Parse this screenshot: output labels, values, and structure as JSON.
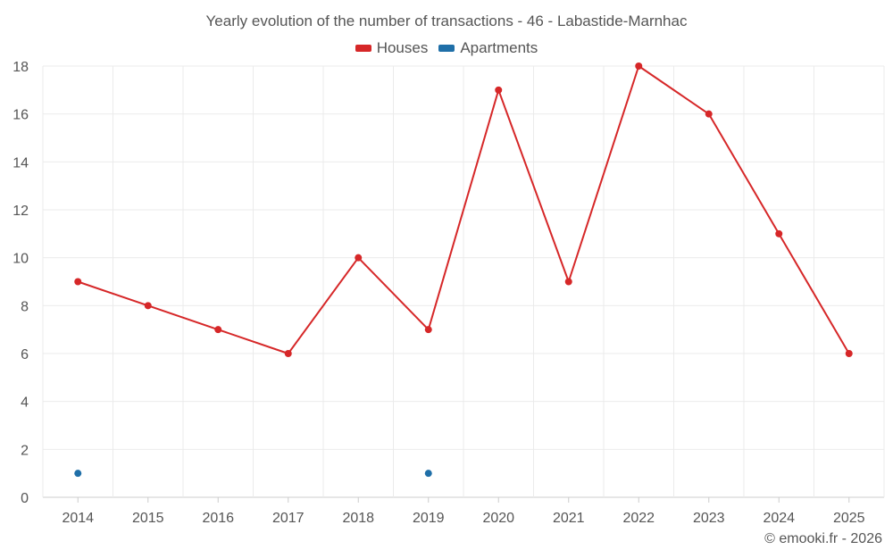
{
  "chart_data": {
    "type": "line",
    "title": "Yearly evolution of the number of transactions - 46 - Labastide-Marnhac",
    "categories": [
      "2014",
      "2015",
      "2016",
      "2017",
      "2018",
      "2019",
      "2020",
      "2021",
      "2022",
      "2023",
      "2024",
      "2025"
    ],
    "series": [
      {
        "name": "Houses",
        "color": "#d62728",
        "values": [
          9,
          8,
          7,
          6,
          10,
          7,
          17,
          9,
          18,
          16,
          11,
          6
        ]
      },
      {
        "name": "Apartments",
        "color": "#1f6fa8",
        "values": [
          1,
          null,
          null,
          null,
          null,
          1,
          null,
          null,
          null,
          null,
          null,
          null
        ]
      }
    ],
    "ylim": [
      0,
      18
    ],
    "yticks": [
      0,
      2,
      4,
      6,
      8,
      10,
      12,
      14,
      16,
      18
    ],
    "grid": true,
    "legend": "top-center"
  },
  "credit": "© emooki.fr - 2026"
}
